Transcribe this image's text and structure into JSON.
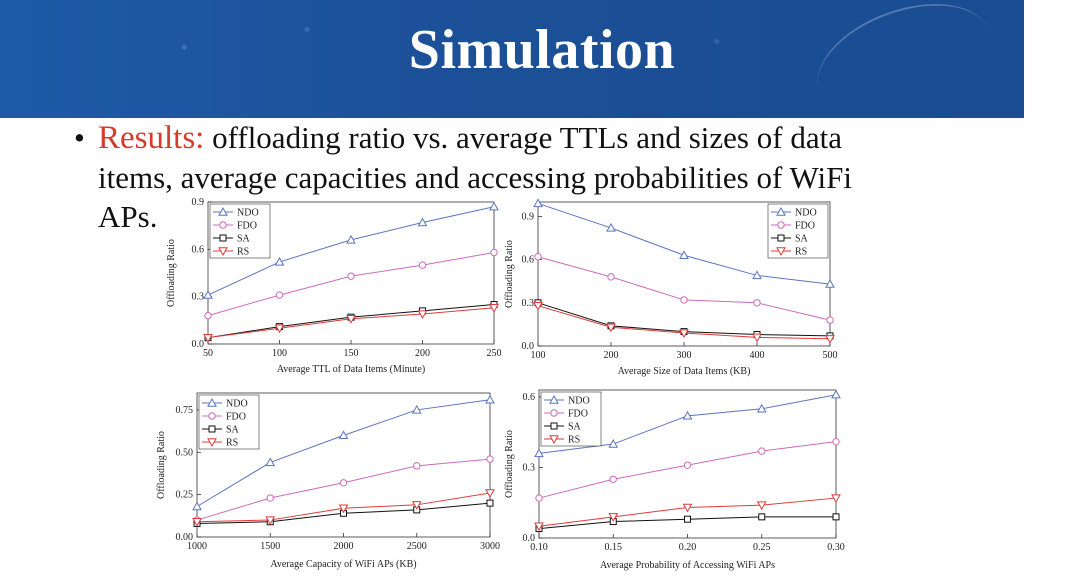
{
  "slide": {
    "title": "Simulation",
    "bullet_lead": "Results:",
    "bullet_line1_rest": " offloading ratio  vs. average TTLs and sizes of data",
    "bullet_line2": "items, average capacities and accessing probabilities of WiFi",
    "bullet_line3": "APs."
  },
  "colors": {
    "header_bg": "#1f4f98",
    "accent_red": "#d8392b",
    "ndo": "#5b74c1",
    "fdo": "#cc6bbd",
    "sa": "#111111",
    "rs": "#e03a3a"
  },
  "chart_data": [
    {
      "type": "line",
      "x": [
        50,
        100,
        150,
        200,
        250
      ],
      "x_tick_labels": [
        "50",
        "100",
        "150",
        "200",
        "250"
      ],
      "xlabel": "Average TTL of Data Items (Minute)",
      "ylabel": "Offloading Ratio",
      "xlim": [
        50,
        250
      ],
      "ylim": [
        0.0,
        0.9
      ],
      "y_ticks": [
        0.0,
        0.3,
        0.6,
        0.9
      ],
      "y_tick_labels": [
        "0.0",
        "0.3",
        "0.6",
        "0.9"
      ],
      "legend_position": "top-left",
      "series": [
        {
          "name": "NDO",
          "marker": "triangle-up",
          "color": "#5b74c1",
          "values": [
            0.31,
            0.52,
            0.66,
            0.77,
            0.87
          ]
        },
        {
          "name": "FDO",
          "marker": "circle",
          "color": "#cc6bbd",
          "values": [
            0.18,
            0.31,
            0.43,
            0.5,
            0.58
          ]
        },
        {
          "name": "SA",
          "marker": "square",
          "color": "#111111",
          "values": [
            0.04,
            0.11,
            0.17,
            0.21,
            0.25
          ]
        },
        {
          "name": "RS",
          "marker": "triangle-down",
          "color": "#e03a3a",
          "values": [
            0.04,
            0.1,
            0.16,
            0.19,
            0.23
          ]
        }
      ]
    },
    {
      "type": "line",
      "x": [
        100,
        200,
        300,
        400,
        500
      ],
      "x_tick_labels": [
        "100",
        "200",
        "300",
        "400",
        "500"
      ],
      "xlabel": "Average Size of Data Items (KB)",
      "ylabel": "Offloading Ratio",
      "xlim": [
        100,
        500
      ],
      "ylim": [
        0.0,
        1.0
      ],
      "y_ticks": [
        0.0,
        0.3,
        0.6,
        0.9
      ],
      "y_tick_labels": [
        "0.0",
        "0.3",
        "0.6",
        "0.9"
      ],
      "legend_position": "top-right",
      "series": [
        {
          "name": "NDO",
          "marker": "triangle-up",
          "color": "#5b74c1",
          "values": [
            0.99,
            0.82,
            0.63,
            0.49,
            0.43
          ]
        },
        {
          "name": "FDO",
          "marker": "circle",
          "color": "#cc6bbd",
          "values": [
            0.62,
            0.48,
            0.32,
            0.3,
            0.18
          ]
        },
        {
          "name": "SA",
          "marker": "square",
          "color": "#111111",
          "values": [
            0.3,
            0.14,
            0.1,
            0.08,
            0.07
          ]
        },
        {
          "name": "RS",
          "marker": "triangle-down",
          "color": "#e03a3a",
          "values": [
            0.28,
            0.13,
            0.09,
            0.06,
            0.05
          ]
        }
      ]
    },
    {
      "type": "line",
      "x": [
        1000,
        1500,
        2000,
        2500,
        3000
      ],
      "x_tick_labels": [
        "1000",
        "1500",
        "2000",
        "2500",
        "3000"
      ],
      "xlabel": "Average Capacity of WiFi APs (KB)",
      "ylabel": "Offloading Ratio",
      "xlim": [
        1000,
        3000
      ],
      "ylim": [
        0.0,
        0.85
      ],
      "y_ticks": [
        0.0,
        0.25,
        0.5,
        0.75
      ],
      "y_tick_labels": [
        "0.00",
        "0.25",
        "0.50",
        "0.75"
      ],
      "legend_position": "top-left",
      "series": [
        {
          "name": "NDO",
          "marker": "triangle-up",
          "color": "#5b74c1",
          "values": [
            0.18,
            0.44,
            0.6,
            0.75,
            0.81
          ]
        },
        {
          "name": "FDO",
          "marker": "circle",
          "color": "#cc6bbd",
          "values": [
            0.1,
            0.23,
            0.32,
            0.42,
            0.46
          ]
        },
        {
          "name": "SA",
          "marker": "square",
          "color": "#111111",
          "values": [
            0.08,
            0.09,
            0.14,
            0.16,
            0.2
          ]
        },
        {
          "name": "RS",
          "marker": "triangle-down",
          "color": "#e03a3a",
          "values": [
            0.09,
            0.1,
            0.17,
            0.19,
            0.26
          ]
        }
      ]
    },
    {
      "type": "line",
      "x": [
        0.1,
        0.15,
        0.2,
        0.25,
        0.3
      ],
      "x_tick_labels": [
        "0.10",
        "0.15",
        "0.20",
        "0.25",
        "0.30"
      ],
      "xlabel": "Average Probability of Accessing WiFi APs",
      "ylabel": "Offloading Ratio",
      "xlim": [
        0.1,
        0.3
      ],
      "ylim": [
        0.0,
        0.63
      ],
      "y_ticks": [
        0.0,
        0.3,
        0.6
      ],
      "y_tick_labels": [
        "0.0",
        "0.3",
        "0.6"
      ],
      "legend_position": "top-left",
      "series": [
        {
          "name": "NDO",
          "marker": "triangle-up",
          "color": "#5b74c1",
          "values": [
            0.36,
            0.4,
            0.52,
            0.55,
            0.61
          ]
        },
        {
          "name": "FDO",
          "marker": "circle",
          "color": "#cc6bbd",
          "values": [
            0.17,
            0.25,
            0.31,
            0.37,
            0.41
          ]
        },
        {
          "name": "SA",
          "marker": "square",
          "color": "#111111",
          "values": [
            0.04,
            0.07,
            0.08,
            0.09,
            0.09
          ]
        },
        {
          "name": "RS",
          "marker": "triangle-down",
          "color": "#e03a3a",
          "values": [
            0.05,
            0.09,
            0.13,
            0.14,
            0.17
          ]
        }
      ]
    }
  ]
}
